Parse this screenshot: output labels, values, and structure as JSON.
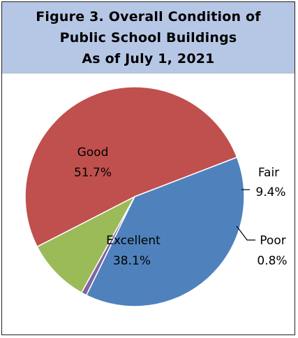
{
  "figure": {
    "title_lines": [
      "Figure 3. Overall Condition of",
      "Public School Buildings",
      "As of July 1, 2021"
    ]
  },
  "chart_data": {
    "type": "pie",
    "title": "Figure 3. Overall Condition of Public School Buildings As of July 1, 2021",
    "slices": [
      {
        "label": "Good",
        "value_label": "51.7%",
        "value": 51.7,
        "color": "#c0504d"
      },
      {
        "label": "Fair",
        "value_label": "9.4%",
        "value": 9.4,
        "color": "#9bbb59"
      },
      {
        "label": "Poor",
        "value_label": "0.8%",
        "value": 0.8,
        "color": "#8064a2"
      },
      {
        "label": "Excellent",
        "value_label": "38.1%",
        "value": 38.1,
        "color": "#4f81bd"
      }
    ],
    "legend": "none"
  }
}
